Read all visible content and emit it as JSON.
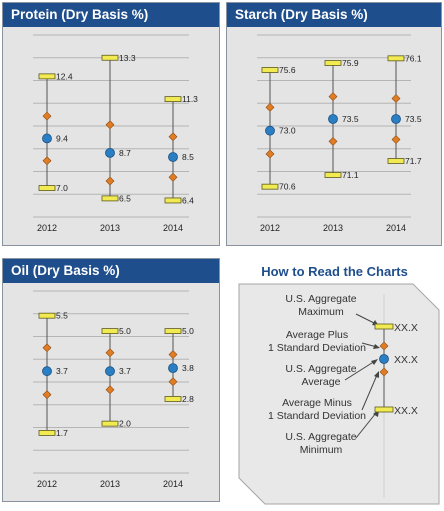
{
  "colors": {
    "header_bg": "#1f4e8c",
    "panel_bg": "#e4e4e4",
    "average_marker": "#2a7fc4",
    "sd_marker": "#e07d24",
    "min_max_marker": "#f2ea52",
    "whisker_line": "#555555"
  },
  "chart_data": [
    {
      "type": "error-bar",
      "title": "Protein (Dry Basis %)",
      "categories": [
        "2012",
        "2013",
        "2014"
      ],
      "series": [
        {
          "max": [
            12.4,
            13.3,
            11.3
          ],
          "average": [
            9.4,
            8.7,
            8.5
          ],
          "min": [
            7.0,
            6.5,
            6.4
          ]
        }
      ],
      "std_dev_markers": true,
      "ylim": [
        5.6,
        14.4
      ],
      "grid": true
    },
    {
      "type": "error-bar",
      "title": "Starch (Dry Basis %)",
      "categories": [
        "2012",
        "2013",
        "2014"
      ],
      "series": [
        {
          "max": [
            75.6,
            75.9,
            76.1
          ],
          "average": [
            73.0,
            73.5,
            73.5
          ],
          "min": [
            70.6,
            71.1,
            71.7
          ]
        }
      ],
      "std_dev_markers": true,
      "ylim": [
        69.3,
        77.1
      ],
      "grid": true
    },
    {
      "type": "error-bar",
      "title": "Oil (Dry Basis %)",
      "categories": [
        "2012",
        "2013",
        "2014"
      ],
      "series": [
        {
          "max": [
            5.5,
            5.0,
            5.0
          ],
          "average": [
            3.7,
            3.7,
            3.8
          ],
          "min": [
            1.7,
            2.0,
            2.8
          ]
        }
      ],
      "std_dev_markers": true,
      "ylim": [
        0.4,
        6.3
      ],
      "grid": true
    }
  ],
  "legend": {
    "title": "How to Read the Charts",
    "labels": {
      "max": [
        "U.S. Aggregate",
        "Maximum"
      ],
      "plus_sd": [
        "Average Plus",
        "1 Standard Deviation"
      ],
      "average": [
        "U.S. Aggregate",
        "Average"
      ],
      "minus_sd": [
        "Average Minus",
        "1 Standard Deviation"
      ],
      "min": [
        "U.S. Aggregate",
        "Minimum"
      ]
    },
    "value_placeholder": "XX.X"
  }
}
